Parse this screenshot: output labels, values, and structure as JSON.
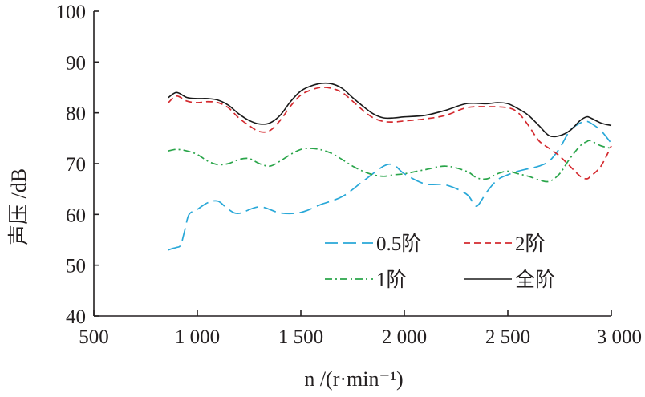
{
  "chart_data": {
    "type": "line",
    "xlabel": "n /(r·min⁻¹)",
    "ylabel": "声压 /dB",
    "xlim": [
      500,
      3000
    ],
    "ylim": [
      40,
      100
    ],
    "x_ticks": [
      500,
      1000,
      1500,
      2000,
      2500,
      3000
    ],
    "x_tick_labels": [
      "500",
      "1 000",
      "1 500",
      "2 000",
      "2 500",
      "3 000"
    ],
    "y_ticks": [
      40,
      50,
      60,
      70,
      80,
      90,
      100
    ],
    "y_tick_labels": [
      "40",
      "50",
      "60",
      "70",
      "80",
      "90",
      "100"
    ],
    "grid": false,
    "legend_position": "lower-right",
    "series": [
      {
        "name": "0.5阶",
        "color": "#29a8d8",
        "dash": "long-dash",
        "x": [
          860,
          880,
          900,
          920,
          940,
          960,
          1000,
          1050,
          1100,
          1150,
          1200,
          1300,
          1400,
          1500,
          1600,
          1700,
          1800,
          1900,
          1950,
          2000,
          2100,
          2200,
          2300,
          2340,
          2360,
          2400,
          2450,
          2500,
          2550,
          2600,
          2650,
          2700,
          2750,
          2800,
          2850,
          2880,
          2900,
          2950,
          3000
        ],
        "y": [
          53.0,
          53.3,
          53.5,
          54.0,
          57.0,
          60.0,
          61.0,
          62.3,
          62.6,
          61.0,
          60.2,
          61.5,
          60.3,
          60.4,
          62.0,
          63.5,
          66.5,
          69.5,
          69.7,
          68.0,
          66.0,
          65.8,
          64.0,
          61.8,
          62.0,
          64.5,
          66.8,
          67.8,
          68.5,
          69.0,
          69.5,
          70.5,
          73.0,
          76.5,
          78.0,
          78.3,
          78.0,
          76.5,
          74.0
        ]
      },
      {
        "name": "2阶",
        "color": "#d42a2f",
        "dash": "dash",
        "x": [
          860,
          900,
          950,
          1000,
          1050,
          1100,
          1150,
          1200,
          1250,
          1300,
          1350,
          1400,
          1450,
          1500,
          1550,
          1600,
          1650,
          1700,
          1750,
          1800,
          1850,
          1900,
          1950,
          2000,
          2100,
          2200,
          2300,
          2400,
          2500,
          2550,
          2600,
          2650,
          2700,
          2750,
          2800,
          2850,
          2880,
          2900,
          2950,
          3000
        ],
        "y": [
          82.0,
          83.3,
          82.3,
          82.0,
          82.2,
          82.0,
          81.0,
          79.0,
          77.5,
          76.3,
          76.5,
          78.5,
          81.3,
          83.5,
          84.5,
          85.0,
          84.8,
          84.0,
          82.3,
          80.5,
          79.0,
          78.3,
          78.2,
          78.4,
          78.8,
          79.5,
          81.0,
          81.2,
          81.0,
          80.0,
          77.5,
          74.5,
          73.0,
          71.5,
          69.5,
          67.5,
          67.0,
          67.5,
          69.5,
          73.5
        ]
      },
      {
        "name": "1阶",
        "color": "#2aa54a",
        "dash": "dash-dot",
        "x": [
          860,
          900,
          950,
          1000,
          1050,
          1100,
          1150,
          1200,
          1250,
          1300,
          1350,
          1400,
          1450,
          1500,
          1550,
          1600,
          1650,
          1700,
          1750,
          1800,
          1850,
          1900,
          1950,
          2000,
          2100,
          2200,
          2300,
          2350,
          2400,
          2450,
          2500,
          2550,
          2600,
          2650,
          2700,
          2750,
          2800,
          2850,
          2880,
          2900,
          2950,
          3000
        ],
        "y": [
          72.5,
          72.8,
          72.5,
          71.8,
          70.5,
          69.8,
          70.0,
          70.8,
          71.0,
          70.0,
          69.5,
          70.5,
          71.8,
          72.8,
          73.0,
          72.7,
          72.0,
          70.8,
          69.5,
          68.5,
          67.8,
          67.5,
          67.8,
          68.0,
          68.8,
          69.5,
          68.5,
          67.2,
          67.0,
          68.0,
          68.5,
          68.0,
          67.5,
          66.8,
          66.5,
          68.0,
          71.0,
          73.5,
          74.3,
          74.5,
          73.5,
          73.0
        ]
      },
      {
        "name": "全阶",
        "color": "#1a1a1a",
        "dash": "solid",
        "x": [
          860,
          900,
          950,
          1000,
          1050,
          1100,
          1150,
          1200,
          1250,
          1300,
          1350,
          1400,
          1450,
          1500,
          1550,
          1600,
          1650,
          1700,
          1750,
          1800,
          1850,
          1900,
          1950,
          2000,
          2100,
          2200,
          2300,
          2400,
          2450,
          2500,
          2550,
          2600,
          2650,
          2700,
          2750,
          2800,
          2850,
          2880,
          2900,
          2950,
          3000
        ],
        "y": [
          83.0,
          84.0,
          83.0,
          82.8,
          82.8,
          82.5,
          81.5,
          79.8,
          78.5,
          77.8,
          78.0,
          79.5,
          82.2,
          84.3,
          85.3,
          85.8,
          85.7,
          84.8,
          83.0,
          81.3,
          79.8,
          79.0,
          79.0,
          79.2,
          79.5,
          80.5,
          81.8,
          81.8,
          82.0,
          81.8,
          80.8,
          79.5,
          77.5,
          75.5,
          75.5,
          76.5,
          78.5,
          79.2,
          79.0,
          78.0,
          77.5
        ]
      }
    ]
  }
}
